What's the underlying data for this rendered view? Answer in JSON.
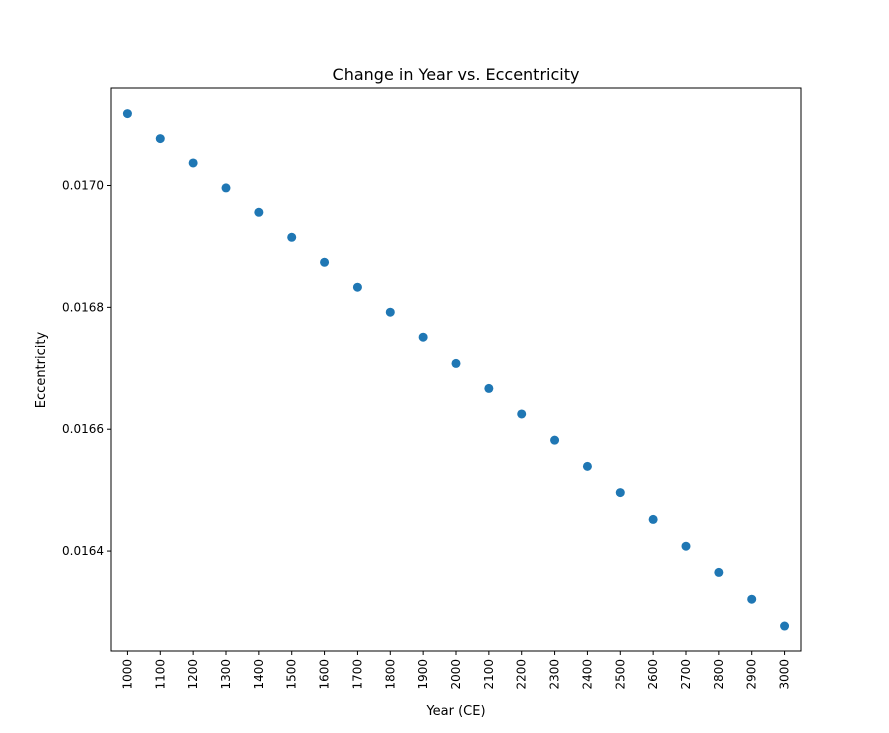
{
  "chart_data": {
    "type": "scatter",
    "title": "Change in Year vs. Eccentricity",
    "xlabel": "Year (CE)",
    "ylabel": "Eccentricity",
    "x": [
      1000,
      1100,
      1200,
      1300,
      1400,
      1500,
      1600,
      1700,
      1800,
      1900,
      2000,
      2100,
      2200,
      2300,
      2400,
      2500,
      2600,
      2700,
      2800,
      2900,
      3000
    ],
    "y": [
      0.017118,
      0.017077,
      0.017037,
      0.016996,
      0.016956,
      0.016915,
      0.016874,
      0.016833,
      0.016792,
      0.016751,
      0.016708,
      0.016667,
      0.016625,
      0.016582,
      0.016539,
      0.016496,
      0.016452,
      0.016408,
      0.016365,
      0.016321,
      0.016277
    ],
    "x_ticks": [
      "1000",
      "1100",
      "1200",
      "1300",
      "1400",
      "1500",
      "1600",
      "1700",
      "1800",
      "1900",
      "2000",
      "2100",
      "2200",
      "2300",
      "2400",
      "2500",
      "2600",
      "2700",
      "2800",
      "2900",
      "3000"
    ],
    "y_ticks": [
      "0.0164",
      "0.0166",
      "0.0168",
      "0.0170"
    ],
    "y_tick_values": [
      0.0164,
      0.0166,
      0.0168,
      0.017
    ],
    "xlim": [
      950,
      3050
    ],
    "ylim": [
      0.016236,
      0.01716
    ],
    "grid": false,
    "marker_color": "#1f77b4"
  }
}
